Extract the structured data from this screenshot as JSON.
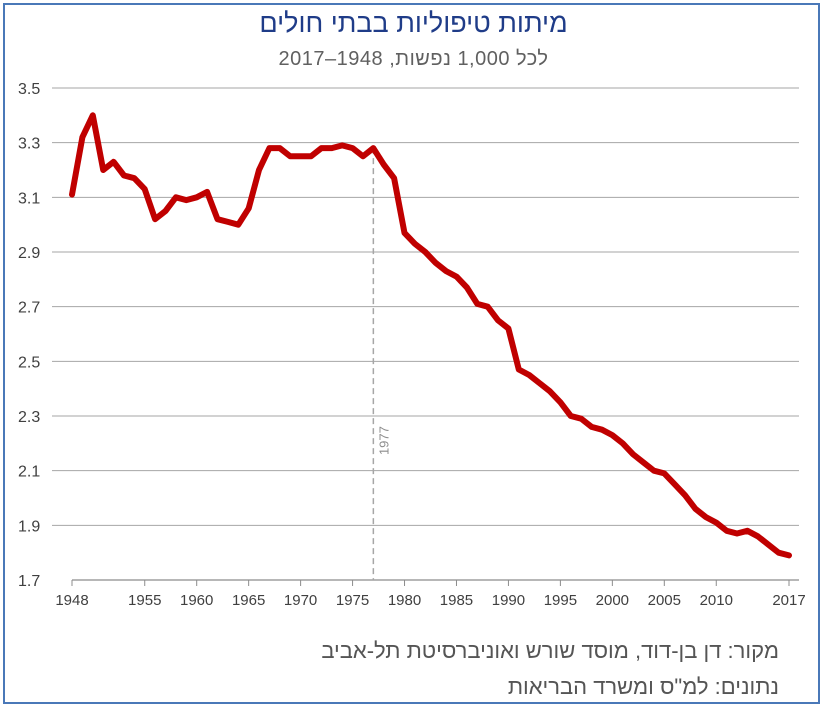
{
  "chart_data": {
    "type": "line",
    "title": "מיתות טיפוליות בבתי חולים",
    "subtitle": "לכל 1,000 נפשות, 1948–2017",
    "xlabel": "",
    "ylabel": "",
    "xlim": [
      1948,
      2017
    ],
    "ylim": [
      1.7,
      3.5
    ],
    "x_ticks": [
      1948,
      1955,
      1960,
      1965,
      1970,
      1975,
      1980,
      1985,
      1990,
      1995,
      2000,
      2005,
      2010,
      2017
    ],
    "y_ticks": [
      1.7,
      1.9,
      2.1,
      2.3,
      2.5,
      2.7,
      2.9,
      3.1,
      3.3,
      3.5
    ],
    "grid": true,
    "annotation": {
      "x": 1977,
      "label": "1977"
    },
    "series": [
      {
        "color": "#c00000",
        "x": [
          1948,
          1949,
          1950,
          1951,
          1952,
          1953,
          1954,
          1955,
          1956,
          1957,
          1958,
          1959,
          1960,
          1961,
          1962,
          1963,
          1964,
          1965,
          1966,
          1967,
          1968,
          1969,
          1970,
          1971,
          1972,
          1973,
          1974,
          1975,
          1976,
          1977,
          1978,
          1979,
          1980,
          1981,
          1982,
          1983,
          1984,
          1985,
          1986,
          1987,
          1988,
          1989,
          1990,
          1991,
          1992,
          1993,
          1994,
          1995,
          1996,
          1997,
          1998,
          1999,
          2000,
          2001,
          2002,
          2003,
          2004,
          2005,
          2006,
          2007,
          2008,
          2009,
          2010,
          2011,
          2012,
          2013,
          2014,
          2015,
          2016,
          2017
        ],
        "values": [
          3.11,
          3.32,
          3.4,
          3.2,
          3.23,
          3.18,
          3.17,
          3.13,
          3.02,
          3.05,
          3.1,
          3.09,
          3.1,
          3.12,
          3.02,
          3.01,
          3.0,
          3.06,
          3.2,
          3.28,
          3.28,
          3.25,
          3.25,
          3.25,
          3.28,
          3.28,
          3.29,
          3.28,
          3.25,
          3.28,
          3.22,
          3.17,
          2.97,
          2.93,
          2.9,
          2.86,
          2.83,
          2.81,
          2.77,
          2.71,
          2.7,
          2.65,
          2.62,
          2.47,
          2.45,
          2.42,
          2.39,
          2.35,
          2.3,
          2.29,
          2.26,
          2.25,
          2.23,
          2.2,
          2.16,
          2.13,
          2.1,
          2.09,
          2.05,
          2.01,
          1.96,
          1.93,
          1.91,
          1.88,
          1.87,
          1.88,
          1.86,
          1.83,
          1.8,
          1.79
        ]
      }
    ]
  },
  "footer": {
    "source": "מקור:  דן בן-דוד, מוסד שורש ואוניברסיטת תל-אביב",
    "data": "נתונים: למ\"ס ומשרד הבריאות"
  },
  "colors": {
    "frame": "#4a78b8",
    "title": "#1f3c88",
    "line": "#c00000",
    "grid": "#a6a6a6",
    "annotation": "#a6a6a6"
  }
}
